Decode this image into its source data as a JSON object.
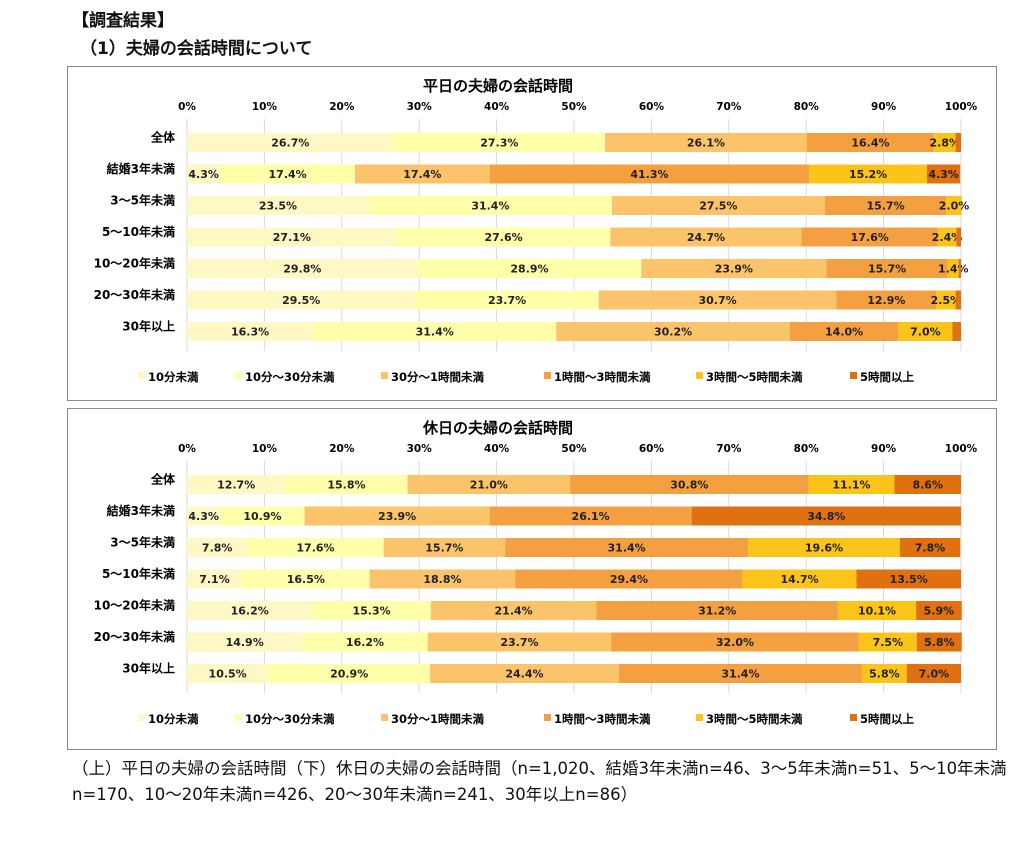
{
  "heading": "【調査結果】",
  "subheading": "（1）夫婦の会話時間について",
  "caption": "（上）平日の夫婦の会話時間（下）休日の夫婦の会話時間（n=1,020、結婚3年未満n=46、3～5年未満n=51、5～10年未満n=170、10～20年未満n=426、20～30年未満n=241、30年以上n=86）",
  "colors": [
    "#fff7c4",
    "#ffffaa",
    "#fcc46a",
    "#f4a040",
    "#fcc418",
    "#e07010"
  ],
  "chart_data": [
    {
      "type": "bar",
      "orientation": "horizontal",
      "stacked": "percent",
      "title": "平日の夫婦の会話時間",
      "xlim": [
        0,
        100
      ],
      "x_ticks": [
        "0%",
        "10%",
        "20%",
        "30%",
        "40%",
        "50%",
        "60%",
        "70%",
        "80%",
        "90%",
        "100%"
      ],
      "categories": [
        "全体",
        "結婚3年未満",
        "3～5年未満",
        "5～10年未満",
        "10～20年未満",
        "20～30年未満",
        "30年以上"
      ],
      "legend": "bottom",
      "series": [
        {
          "name": "10分未満",
          "values": [
            26.7,
            4.3,
            23.5,
            27.1,
            29.8,
            29.5,
            16.3
          ],
          "labels": [
            "26.7%",
            "4.3%",
            "23.5%",
            "27.1%",
            "29.8%",
            "29.5%",
            "16.3%"
          ]
        },
        {
          "name": "10分～30分未満",
          "values": [
            27.3,
            17.4,
            31.4,
            27.6,
            28.9,
            23.7,
            31.4
          ],
          "labels": [
            "27.3%",
            "17.4%",
            "31.4%",
            "27.6%",
            "28.9%",
            "23.7%",
            "31.4%"
          ]
        },
        {
          "name": "30分～1時間未満",
          "values": [
            26.1,
            17.4,
            27.5,
            24.7,
            23.9,
            30.7,
            30.2
          ],
          "labels": [
            "26.1%",
            "17.4%",
            "27.5%",
            "24.7%",
            "23.9%",
            "30.7%",
            "30.2%"
          ]
        },
        {
          "name": "1時間～3時間未満",
          "values": [
            16.4,
            41.3,
            15.7,
            17.6,
            15.7,
            12.9,
            14.0
          ],
          "labels": [
            "16.4%",
            "41.3%",
            "15.7%",
            "17.6%",
            "15.7%",
            "12.9%",
            "14.0%"
          ]
        },
        {
          "name": "3時間～5時間未満",
          "values": [
            2.8,
            15.2,
            2.0,
            2.4,
            1.4,
            2.5,
            7.0
          ],
          "labels": [
            "2.8%",
            "15.2%",
            "2.0%",
            "2.4%",
            "1.4%",
            "2.5%",
            "7.0%"
          ]
        },
        {
          "name": "5時間以上",
          "values": [
            0.7,
            4.3,
            0.0,
            0.6,
            0.3,
            0.7,
            1.1
          ],
          "labels": [
            "",
            "4.3%",
            "",
            "",
            "",
            "",
            ""
          ]
        }
      ]
    },
    {
      "type": "bar",
      "orientation": "horizontal",
      "stacked": "percent",
      "title": "休日の夫婦の会話時間",
      "xlim": [
        0,
        100
      ],
      "x_ticks": [
        "0%",
        "10%",
        "20%",
        "30%",
        "40%",
        "50%",
        "60%",
        "70%",
        "80%",
        "90%",
        "100%"
      ],
      "categories": [
        "全体",
        "結婚3年未満",
        "3～5年未満",
        "5～10年未満",
        "10～20年未満",
        "20～30年未満",
        "30年以上"
      ],
      "legend": "bottom",
      "series": [
        {
          "name": "10分未満",
          "values": [
            12.7,
            4.3,
            7.8,
            7.1,
            16.2,
            14.9,
            10.5
          ],
          "labels": [
            "12.7%",
            "4.3%",
            "7.8%",
            "7.1%",
            "16.2%",
            "14.9%",
            "10.5%"
          ]
        },
        {
          "name": "10分～30分未満",
          "values": [
            15.8,
            10.9,
            17.6,
            16.5,
            15.3,
            16.2,
            20.9
          ],
          "labels": [
            "15.8%",
            "10.9%",
            "17.6%",
            "16.5%",
            "15.3%",
            "16.2%",
            "20.9%"
          ]
        },
        {
          "name": "30分～1時間未満",
          "values": [
            21.0,
            23.9,
            15.7,
            18.8,
            21.4,
            23.7,
            24.4
          ],
          "labels": [
            "21.0%",
            "23.9%",
            "15.7%",
            "18.8%",
            "21.4%",
            "23.7%",
            "24.4%"
          ]
        },
        {
          "name": "1時間～3時間未満",
          "values": [
            30.8,
            26.1,
            31.4,
            29.4,
            31.2,
            32.0,
            31.4
          ],
          "labels": [
            "30.8%",
            "26.1%",
            "31.4%",
            "29.4%",
            "31.2%",
            "32.0%",
            "31.4%"
          ]
        },
        {
          "name": "3時間～5時間未満",
          "values": [
            11.1,
            0.0,
            19.6,
            14.7,
            10.1,
            7.5,
            5.8
          ],
          "labels": [
            "11.1%",
            "",
            "19.6%",
            "14.7%",
            "10.1%",
            "7.5%",
            "5.8%"
          ]
        },
        {
          "name": "5時間以上",
          "values": [
            8.6,
            34.8,
            7.8,
            13.5,
            5.9,
            5.8,
            7.0
          ],
          "labels": [
            "8.6%",
            "34.8%",
            "7.8%",
            "13.5%",
            "5.9%",
            "5.8%",
            "7.0%"
          ]
        }
      ]
    }
  ]
}
